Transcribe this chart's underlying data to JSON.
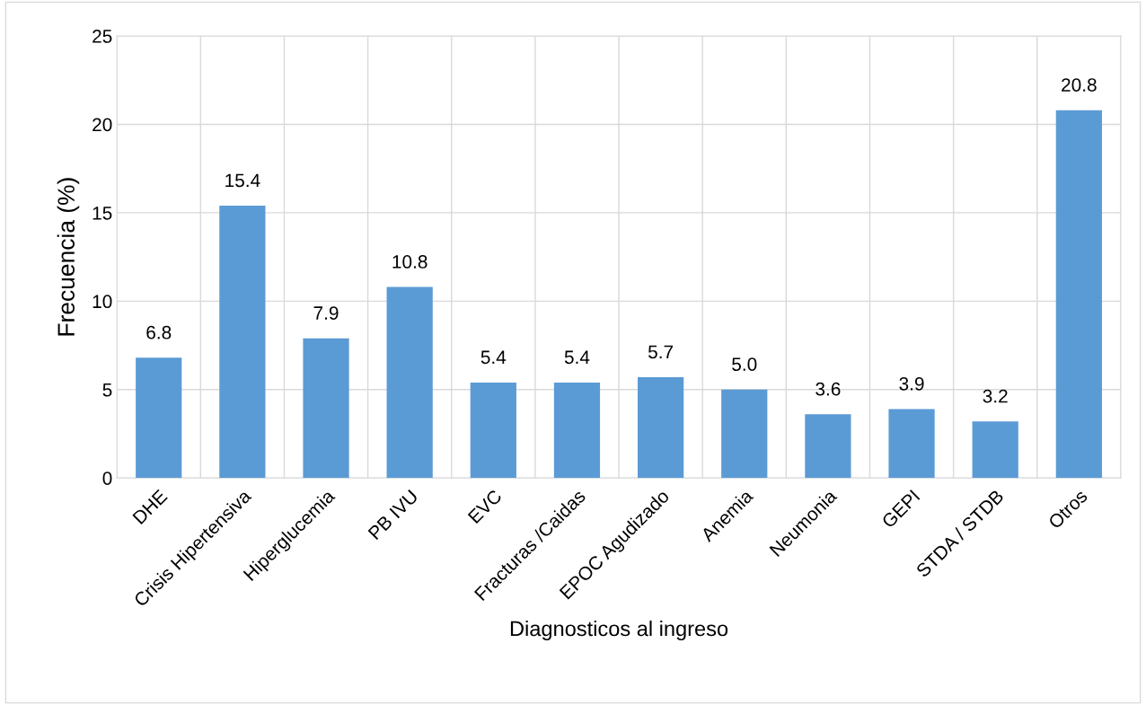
{
  "chart_data": {
    "type": "bar",
    "xlabel": "Diagnosticos al ingreso",
    "ylabel": "Frecuencia (%)",
    "categories": [
      "DHE",
      "Crisis Hipertensiva",
      "Hiperglucemia",
      "PB IVU",
      "EVC",
      "Fracturas /Caidas",
      "EPOC Agudizado",
      "Anemia",
      "Neumonia",
      "GEPI",
      "STDA / STDB",
      "Otros"
    ],
    "values": [
      6.8,
      15.4,
      7.9,
      10.8,
      5.4,
      5.4,
      5.7,
      5.0,
      3.6,
      3.9,
      3.2,
      20.8
    ],
    "value_labels": [
      "6.8",
      "15.4",
      "7.9",
      "10.8",
      "5.4",
      "5.4",
      "5.7",
      "5.0",
      "3.6",
      "3.9",
      "3.2",
      "20.8"
    ],
    "color": "#5b9bd5",
    "ylim": [
      0,
      25
    ],
    "yticks": [
      0,
      5,
      10,
      15,
      20,
      25
    ],
    "grid": true
  }
}
